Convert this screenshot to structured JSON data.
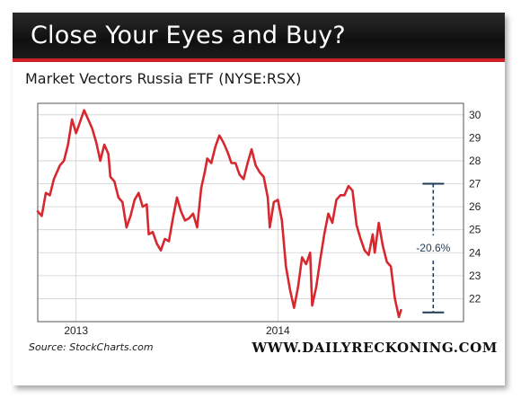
{
  "header": {
    "title": "Close Your Eyes and Buy?",
    "subtitle": "Market Vectors Russia ETF (NYSE:RSX)"
  },
  "footer": {
    "source": "Source: StockCharts.com",
    "brand": "WWW.DAILYRECKONING.COM"
  },
  "colors": {
    "series": "#d7282f",
    "banner_bg": "#151515",
    "banner_accent": "#cf1f25",
    "annotation": "#1f3b57",
    "grid": "#cfcfcf"
  },
  "chart_data": {
    "type": "line",
    "title": "Market Vectors Russia ETF (NYSE:RSX)",
    "xlabel": "",
    "ylabel": "",
    "ylim": [
      21,
      30.5
    ],
    "xlim": [
      2012.81,
      2014.92
    ],
    "y_ticks": [
      22,
      23,
      24,
      25,
      26,
      27,
      28,
      29,
      30
    ],
    "x_ticks": [
      {
        "value": 2013,
        "label": "2013"
      },
      {
        "value": 2014,
        "label": "2014"
      }
    ],
    "grid": true,
    "y_axis_side": "right",
    "series": [
      {
        "points": [
          [
            2012.81,
            25.8
          ],
          [
            2012.83,
            25.6
          ],
          [
            2012.85,
            26.6
          ],
          [
            2012.87,
            26.5
          ],
          [
            2012.89,
            27.2
          ],
          [
            2012.92,
            27.8
          ],
          [
            2012.94,
            28.0
          ],
          [
            2012.96,
            28.7
          ],
          [
            2012.98,
            29.8
          ],
          [
            2013.0,
            29.2
          ],
          [
            2013.02,
            29.7
          ],
          [
            2013.04,
            30.2
          ],
          [
            2013.06,
            29.8
          ],
          [
            2013.08,
            29.4
          ],
          [
            2013.1,
            28.8
          ],
          [
            2013.12,
            28.0
          ],
          [
            2013.14,
            28.7
          ],
          [
            2013.16,
            28.3
          ],
          [
            2013.17,
            27.3
          ],
          [
            2013.19,
            27.1
          ],
          [
            2013.21,
            26.4
          ],
          [
            2013.23,
            26.2
          ],
          [
            2013.25,
            25.1
          ],
          [
            2013.27,
            25.6
          ],
          [
            2013.29,
            26.3
          ],
          [
            2013.31,
            26.6
          ],
          [
            2013.33,
            26.0
          ],
          [
            2013.35,
            26.1
          ],
          [
            2013.36,
            24.8
          ],
          [
            2013.38,
            24.9
          ],
          [
            2013.4,
            24.4
          ],
          [
            2013.42,
            24.1
          ],
          [
            2013.44,
            24.6
          ],
          [
            2013.46,
            24.5
          ],
          [
            2013.48,
            25.5
          ],
          [
            2013.5,
            26.4
          ],
          [
            2013.52,
            25.8
          ],
          [
            2013.54,
            25.4
          ],
          [
            2013.56,
            25.5
          ],
          [
            2013.58,
            25.7
          ],
          [
            2013.6,
            25.1
          ],
          [
            2013.62,
            26.8
          ],
          [
            2013.64,
            27.6
          ],
          [
            2013.65,
            28.1
          ],
          [
            2013.67,
            27.9
          ],
          [
            2013.69,
            28.6
          ],
          [
            2013.71,
            29.1
          ],
          [
            2013.73,
            28.8
          ],
          [
            2013.75,
            28.4
          ],
          [
            2013.77,
            27.9
          ],
          [
            2013.79,
            27.9
          ],
          [
            2013.81,
            27.4
          ],
          [
            2013.83,
            27.2
          ],
          [
            2013.85,
            27.9
          ],
          [
            2013.87,
            28.5
          ],
          [
            2013.89,
            27.8
          ],
          [
            2013.91,
            27.5
          ],
          [
            2013.93,
            27.3
          ],
          [
            2013.95,
            26.4
          ],
          [
            2013.96,
            25.1
          ],
          [
            2013.98,
            26.2
          ],
          [
            2014.0,
            26.3
          ],
          [
            2014.02,
            25.4
          ],
          [
            2014.04,
            23.4
          ],
          [
            2014.06,
            22.4
          ],
          [
            2014.08,
            21.6
          ],
          [
            2014.1,
            22.5
          ],
          [
            2014.12,
            23.8
          ],
          [
            2014.14,
            23.5
          ],
          [
            2014.16,
            24.0
          ],
          [
            2014.17,
            21.7
          ],
          [
            2014.19,
            22.5
          ],
          [
            2014.21,
            23.7
          ],
          [
            2014.23,
            24.8
          ],
          [
            2014.25,
            25.7
          ],
          [
            2014.27,
            25.3
          ],
          [
            2014.29,
            26.3
          ],
          [
            2014.31,
            26.5
          ],
          [
            2014.33,
            26.5
          ],
          [
            2014.35,
            26.9
          ],
          [
            2014.37,
            26.7
          ],
          [
            2014.39,
            25.2
          ],
          [
            2014.41,
            24.6
          ],
          [
            2014.43,
            24.1
          ],
          [
            2014.45,
            23.9
          ],
          [
            2014.47,
            24.8
          ],
          [
            2014.48,
            24.0
          ],
          [
            2014.5,
            25.3
          ],
          [
            2014.52,
            24.3
          ],
          [
            2014.54,
            23.6
          ],
          [
            2014.56,
            23.4
          ],
          [
            2014.58,
            22.0
          ],
          [
            2014.6,
            21.2
          ],
          [
            2014.61,
            21.5
          ]
        ]
      }
    ],
    "annotations": [
      {
        "type": "range_bracket",
        "x": 2014.77,
        "y_top": 27.0,
        "y_bottom": 21.4,
        "label": "-20.6%"
      }
    ]
  }
}
